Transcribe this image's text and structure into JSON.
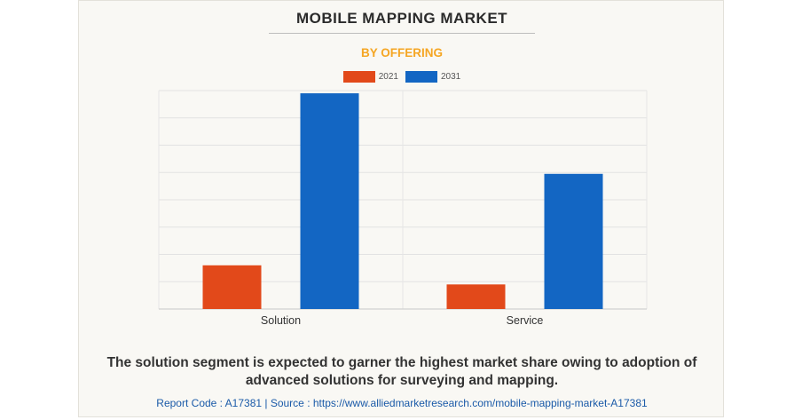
{
  "header": {
    "title": "MOBILE MAPPING MARKET",
    "subtitle": "BY OFFERING"
  },
  "colors": {
    "series_2021": "#e2491a",
    "series_2031": "#1366c3",
    "subtitle": "#f5a623"
  },
  "chart_data": {
    "type": "bar",
    "categories": [
      "Solution",
      "Service"
    ],
    "series": [
      {
        "name": "2021",
        "values": [
          1.6,
          0.9
        ]
      },
      {
        "name": "2031",
        "values": [
          7.9,
          4.95
        ]
      }
    ],
    "ylim": [
      0,
      8
    ],
    "grid": true,
    "legend": "top-center",
    "title": "MOBILE MAPPING MARKET",
    "subtitle": "BY OFFERING"
  },
  "caption": "The solution segment is expected to garner the highest market share owing to adoption of advanced solutions for surveying and mapping.",
  "footer": "Report Code : A17381  |  Source : https://www.alliedmarketresearch.com/mobile-mapping-market-A17381"
}
